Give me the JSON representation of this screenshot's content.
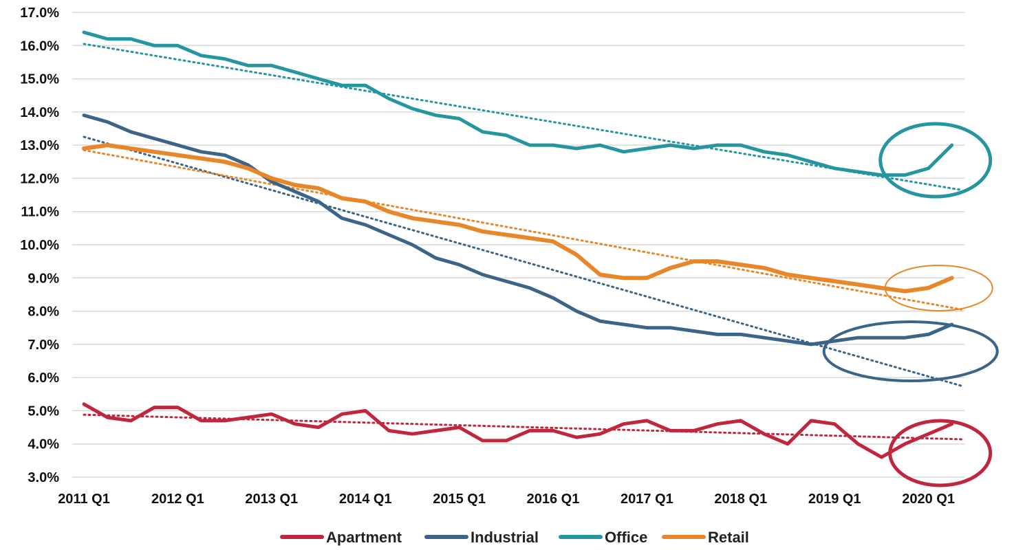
{
  "chart_data": {
    "type": "line",
    "title": "",
    "xlabel": "",
    "ylabel": "",
    "ylim": [
      3.0,
      17.0
    ],
    "y_tick_labels": [
      "3.0%",
      "4.0%",
      "5.0%",
      "6.0%",
      "7.0%",
      "8.0%",
      "9.0%",
      "10.0%",
      "11.0%",
      "12.0%",
      "13.0%",
      "14.0%",
      "15.0%",
      "16.0%",
      "17.0%"
    ],
    "x_tick_labels": [
      "2011 Q1",
      "2012 Q1",
      "2013 Q1",
      "2014 Q1",
      "2015 Q1",
      "2016 Q1",
      "2017 Q1",
      "2018 Q1",
      "2019 Q1",
      "2020 Q1"
    ],
    "grid": true,
    "legend": "bottom",
    "series": [
      {
        "name": "Apartment",
        "color": "#c0263d",
        "values": [
          5.2,
          4.8,
          4.7,
          5.1,
          5.1,
          4.7,
          4.7,
          4.8,
          4.9,
          4.6,
          4.5,
          4.9,
          5.0,
          4.4,
          4.3,
          4.4,
          4.5,
          4.1,
          4.1,
          4.4,
          4.4,
          4.2,
          4.3,
          4.6,
          4.7,
          4.4,
          4.4,
          4.6,
          4.7,
          4.3,
          4.0,
          4.7,
          4.6,
          4.0,
          3.6,
          4.0,
          4.3,
          4.6
        ],
        "trendline": [
          4.88,
          4.14
        ],
        "highlight_circle": true
      },
      {
        "name": "Industrial",
        "color": "#3b6488",
        "values": [
          13.9,
          13.7,
          13.4,
          13.2,
          13.0,
          12.8,
          12.7,
          12.4,
          11.9,
          11.6,
          11.3,
          10.8,
          10.6,
          10.3,
          10.0,
          9.6,
          9.4,
          9.1,
          8.9,
          8.7,
          8.4,
          8.0,
          7.7,
          7.6,
          7.5,
          7.5,
          7.4,
          7.3,
          7.3,
          7.2,
          7.1,
          7.0,
          7.1,
          7.2,
          7.2,
          7.2,
          7.3,
          7.6
        ],
        "trendline": [
          13.25,
          5.75
        ],
        "highlight_circle": true
      },
      {
        "name": "Office",
        "color": "#2596a0",
        "values": [
          16.4,
          16.2,
          16.2,
          16.0,
          16.0,
          15.7,
          15.6,
          15.4,
          15.4,
          15.2,
          15.0,
          14.8,
          14.8,
          14.4,
          14.1,
          13.9,
          13.8,
          13.4,
          13.3,
          13.0,
          13.0,
          12.9,
          13.0,
          12.8,
          12.9,
          13.0,
          12.9,
          13.0,
          13.0,
          12.8,
          12.7,
          12.5,
          12.3,
          12.2,
          12.1,
          12.1,
          12.3,
          13.0
        ],
        "trendline": [
          16.05,
          11.65
        ],
        "highlight_circle": true
      },
      {
        "name": "Retail",
        "color": "#e8872a",
        "values": [
          12.9,
          13.0,
          12.9,
          12.8,
          12.7,
          12.6,
          12.5,
          12.3,
          12.0,
          11.8,
          11.7,
          11.4,
          11.3,
          11.0,
          10.8,
          10.7,
          10.6,
          10.4,
          10.3,
          10.2,
          10.1,
          9.7,
          9.1,
          9.0,
          9.0,
          9.3,
          9.5,
          9.5,
          9.4,
          9.3,
          9.1,
          9.0,
          8.9,
          8.8,
          8.7,
          8.6,
          8.7,
          9.0
        ],
        "trendline": [
          12.85,
          8.05
        ],
        "highlight_circle": true
      }
    ]
  }
}
